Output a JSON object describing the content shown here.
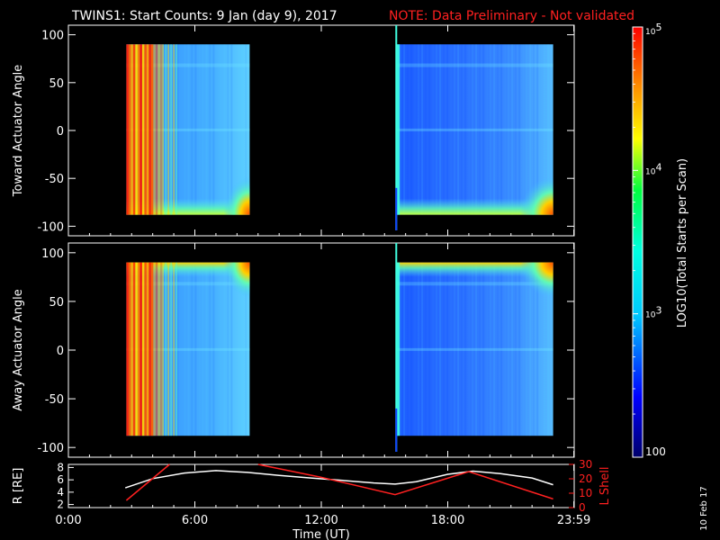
{
  "header": {
    "title": "TWINS1: Start Counts:  9 Jan (day   9), 2017",
    "note": "NOTE: Data Preliminary - Not validated"
  },
  "colors": {
    "background": "#000000",
    "foreground": "#ffffff",
    "note": "#ff2020",
    "lshell": "#ff2020",
    "radius": "#ffffff"
  },
  "colorbar": {
    "label": "LOG10(Total Starts per Scan)",
    "ticks": [
      "100",
      "10^3",
      "10^4",
      "10^5"
    ],
    "scale": "log",
    "range": [
      100,
      100000
    ]
  },
  "date_stamp": "10 Feb 17",
  "chart_data": [
    {
      "type": "heatmap",
      "ylabel": "Toward Actuator Angle",
      "ylim": [
        -110,
        110
      ],
      "yticks": [
        "100",
        "50",
        "0",
        "-50",
        "-100"
      ],
      "xlim_hours": [
        0,
        24
      ],
      "data_extent_angle": [
        -88,
        90
      ],
      "data_blocks_hours": [
        [
          2.75,
          8.6
        ],
        [
          15.55,
          23.0
        ]
      ],
      "spike_hour": 15.6
    },
    {
      "type": "heatmap",
      "ylabel": "Away Actuator Angle",
      "ylim": [
        -110,
        110
      ],
      "yticks": [
        "100",
        "50",
        "0",
        "-50",
        "-100"
      ],
      "xlim_hours": [
        0,
        24
      ],
      "data_extent_angle": [
        -88,
        90
      ],
      "data_blocks_hours": [
        [
          2.75,
          8.6
        ],
        [
          15.55,
          23.0
        ]
      ],
      "spike_hour": 15.6
    },
    {
      "type": "line",
      "xlabel": "Time (UT)",
      "xticks": [
        "0:00",
        "6:00",
        "12:00",
        "18:00",
        "23:59"
      ],
      "left_axis": {
        "label": "R [RE]",
        "ticks": [
          "8",
          "6",
          "4",
          "2"
        ],
        "ylim": [
          1.5,
          8.5
        ]
      },
      "right_axis": {
        "label": "L Shell",
        "ticks": [
          "30",
          "20",
          "10",
          "0"
        ],
        "ylim": [
          0,
          30
        ]
      },
      "series": [
        {
          "name": "R [RE]",
          "x": [
            2.7,
            4.0,
            5.5,
            7.0,
            8.5,
            10,
            11.5,
            13,
            14.5,
            15.5,
            16.5,
            18,
            19.2,
            20.5,
            22,
            23.0
          ],
          "y": [
            4.7,
            6.2,
            7.1,
            7.5,
            7.2,
            6.7,
            6.3,
            5.9,
            5.5,
            5.3,
            5.7,
            6.9,
            7.4,
            7.0,
            6.3,
            5.2
          ]
        },
        {
          "name": "L Shell",
          "segments": [
            {
              "x": [
                2.75,
                4.8
              ],
              "y": [
                5,
                30
              ]
            },
            {
              "x": [
                9.0,
                12.0,
                15.5,
                19.0,
                23.0
              ],
              "y": [
                30,
                21,
                9,
                25,
                6
              ]
            }
          ]
        }
      ]
    }
  ]
}
